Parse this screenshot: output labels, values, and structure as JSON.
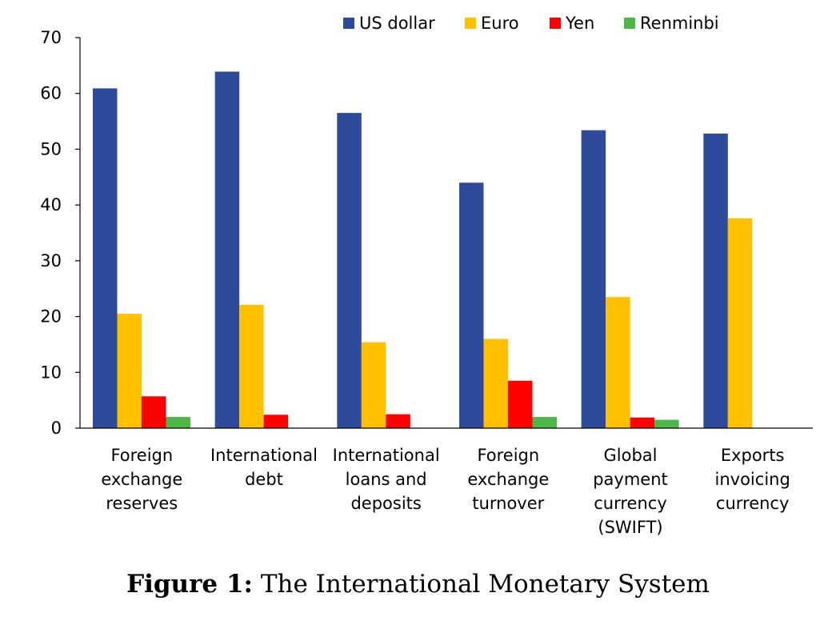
{
  "chart_data": {
    "type": "bar",
    "categories": [
      [
        "Foreign",
        "exchange",
        "reserves"
      ],
      [
        "International",
        "debt"
      ],
      [
        "International",
        "loans and",
        "deposits"
      ],
      [
        "Foreign",
        "exchange",
        "turnover"
      ],
      [
        "Global",
        "payment",
        "currency",
        "(SWIFT)"
      ],
      [
        "Exports",
        "invoicing",
        "currency"
      ]
    ],
    "series": [
      {
        "name": "US dollar",
        "color": "#2E4A9B",
        "values": [
          60.9,
          63.9,
          56.5,
          44.0,
          53.4,
          52.8
        ]
      },
      {
        "name": "Euro",
        "color": "#FFC000",
        "values": [
          20.5,
          22.1,
          15.4,
          16.0,
          23.5,
          37.6
        ]
      },
      {
        "name": "Yen",
        "color": "#FF0000",
        "values": [
          5.7,
          2.4,
          2.5,
          8.5,
          1.9,
          null
        ]
      },
      {
        "name": "Renminbi",
        "color": "#4CB848",
        "values": [
          2.0,
          null,
          null,
          2.0,
          1.5,
          null
        ]
      }
    ],
    "ylim": [
      0,
      70
    ],
    "yticks": [
      0,
      10,
      20,
      30,
      40,
      50,
      60,
      70
    ],
    "legend_position": "top"
  },
  "caption": {
    "label": "Figure 1:",
    "text": "The International Monetary System"
  }
}
